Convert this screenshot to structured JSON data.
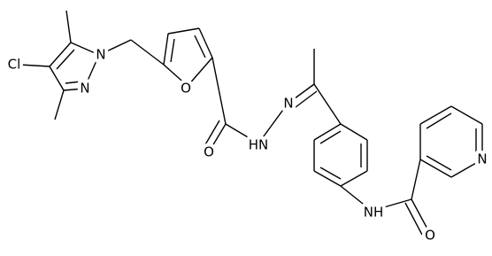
{
  "atoms": [
    "Cl",
    "N",
    "N",
    "O",
    "O",
    "HN",
    "N",
    "NH",
    "O",
    "N"
  ]
}
